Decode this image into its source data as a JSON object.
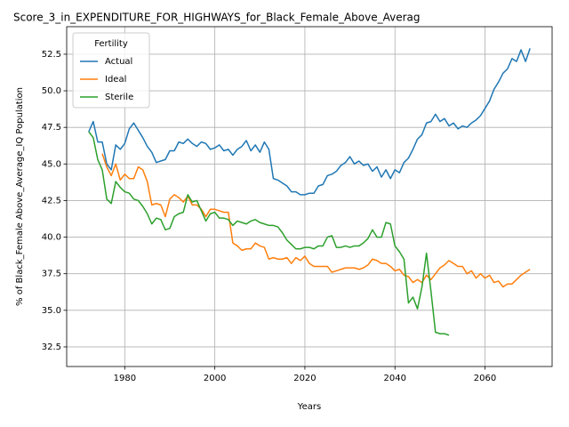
{
  "chart_data": {
    "type": "line",
    "title": "Score_3_in_EXPENDITURE_FOR_HIGHWAYS_for_Black_Female_Above_Averag",
    "x_label": "Years",
    "y_label": "% of Black_Female Above_Average_IQ Population",
    "legend_title": "Fertility",
    "legend": "upper left",
    "grid": true,
    "x": [
      1972,
      1973,
      1974,
      1975,
      1976,
      1977,
      1978,
      1979,
      1980,
      1981,
      1982,
      1983,
      1984,
      1985,
      1986,
      1987,
      1988,
      1989,
      1990,
      1991,
      1992,
      1993,
      1994,
      1995,
      1996,
      1997,
      1998,
      1999,
      2000,
      2001,
      2002,
      2003,
      2004,
      2005,
      2006,
      2007,
      2008,
      2009,
      2010,
      2011,
      2012,
      2013,
      2014,
      2015,
      2016,
      2017,
      2018,
      2019,
      2020,
      2021,
      2022,
      2023,
      2024,
      2025,
      2026,
      2027,
      2028,
      2029,
      2030,
      2031,
      2032,
      2033,
      2034,
      2035,
      2036,
      2037,
      2038,
      2039,
      2040,
      2041,
      2042,
      2043,
      2044,
      2045,
      2046,
      2047,
      2048,
      2049,
      2050,
      2051,
      2052,
      2053,
      2054,
      2055,
      2056,
      2057,
      2058,
      2059,
      2060,
      2061,
      2062,
      2063,
      2064,
      2065,
      2066,
      2067,
      2068,
      2069,
      2070
    ],
    "series": [
      {
        "name": "Actual",
        "color": "#1f77b4",
        "values": [
          47.2,
          47.9,
          46.5,
          46.5,
          45.0,
          44.6,
          46.3,
          46.0,
          46.4,
          47.4,
          47.8,
          47.3,
          46.8,
          46.2,
          45.8,
          45.1,
          45.2,
          45.3,
          45.9,
          45.9,
          46.5,
          46.4,
          46.7,
          46.4,
          46.2,
          46.5,
          46.4,
          46.0,
          46.1,
          46.3,
          45.9,
          46.0,
          45.6,
          46.0,
          46.2,
          46.6,
          45.9,
          46.3,
          45.8,
          46.5,
          46.0,
          44.0,
          43.9,
          43.7,
          43.5,
          43.1,
          43.1,
          42.9,
          42.9,
          43.0,
          43.0,
          43.5,
          43.6,
          44.2,
          44.3,
          44.5,
          44.9,
          45.1,
          45.5,
          45.0,
          45.2,
          44.9,
          45.0,
          44.5,
          44.8,
          44.1,
          44.6,
          44.0,
          44.6,
          44.4,
          45.1,
          45.4,
          46.0,
          46.7,
          47.0,
          47.8,
          47.9,
          48.4,
          47.9,
          48.1,
          47.6,
          47.8,
          47.4,
          47.6,
          47.5,
          47.8,
          48.0,
          48.3,
          48.8,
          49.3,
          50.1,
          50.6,
          51.2,
          51.5,
          52.2,
          52.0,
          52.8,
          52.0,
          52.9
        ]
      },
      {
        "name": "Ideal",
        "color": "#ff7f0e",
        "values": [
          null,
          null,
          null,
          45.7,
          44.8,
          44.2,
          45.0,
          43.9,
          44.3,
          44.0,
          44.0,
          44.8,
          44.6,
          43.8,
          42.2,
          42.3,
          42.2,
          41.4,
          42.6,
          42.9,
          42.7,
          42.4,
          42.8,
          42.2,
          42.2,
          41.9,
          41.4,
          41.9,
          41.9,
          41.8,
          41.7,
          41.7,
          39.6,
          39.4,
          39.1,
          39.2,
          39.2,
          39.6,
          39.4,
          39.3,
          38.5,
          38.6,
          38.5,
          38.5,
          38.6,
          38.2,
          38.6,
          38.4,
          38.7,
          38.2,
          38.0,
          38.0,
          38.0,
          38.0,
          37.6,
          37.7,
          37.8,
          37.9,
          37.9,
          37.9,
          37.8,
          37.9,
          38.1,
          38.5,
          38.4,
          38.2,
          38.2,
          38.0,
          37.7,
          37.8,
          37.4,
          37.3,
          36.9,
          37.1,
          36.9,
          37.4,
          37.1,
          37.5,
          37.9,
          38.1,
          38.4,
          38.2,
          38.0,
          38.0,
          37.5,
          37.7,
          37.2,
          37.5,
          37.2,
          37.4,
          36.9,
          37.0,
          36.6,
          36.8,
          36.8,
          37.1,
          37.4,
          37.6,
          37.8
        ]
      },
      {
        "name": "Sterile",
        "color": "#2ca02c",
        "values": [
          47.2,
          46.8,
          45.3,
          44.6,
          42.6,
          42.3,
          43.8,
          43.4,
          43.1,
          43.0,
          42.6,
          42.5,
          42.1,
          41.6,
          40.9,
          41.3,
          41.2,
          40.5,
          40.6,
          41.4,
          41.6,
          41.7,
          42.9,
          42.4,
          42.5,
          41.8,
          41.1,
          41.6,
          41.7,
          41.3,
          41.3,
          41.2,
          40.8,
          41.1,
          41.0,
          40.9,
          41.1,
          41.2,
          41.0,
          40.9,
          40.8,
          40.8,
          40.7,
          40.3,
          39.8,
          39.5,
          39.2,
          39.2,
          39.3,
          39.3,
          39.2,
          39.4,
          39.4,
          40.0,
          40.1,
          39.3,
          39.3,
          39.4,
          39.3,
          39.4,
          39.4,
          39.6,
          39.9,
          40.5,
          40.0,
          40.0,
          41.0,
          40.9,
          39.4,
          39.0,
          38.5,
          35.5,
          35.9,
          35.1,
          36.6,
          38.9,
          36.3,
          33.5,
          33.4,
          33.4,
          33.3,
          null,
          null,
          null,
          null,
          null,
          null,
          null,
          null,
          null,
          null,
          null,
          null,
          null,
          null,
          null,
          null,
          null,
          null
        ]
      }
    ],
    "xlim": [
      1967.1,
      2074.9
    ],
    "xticks": [
      1980,
      2000,
      2020,
      2040,
      2060
    ],
    "ylim": [
      31.16,
      54.38
    ],
    "yticks": [
      32.5,
      {
        "value": 35,
        "label": "35.0"
      },
      37.5,
      {
        "value": 40,
        "label": "40.0"
      },
      42.5,
      {
        "value": 45,
        "label": "45.0"
      },
      47.5,
      {
        "value": 50,
        "label": "50.0"
      },
      52.5
    ]
  }
}
